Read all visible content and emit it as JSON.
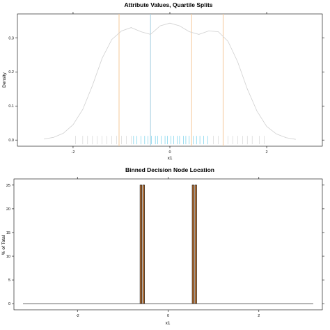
{
  "chart_data": [
    {
      "type": "line",
      "title": "Attribute Values, Quartile Splits",
      "xlabel": "x1",
      "ylabel": "Density",
      "xlim": [
        -3.15,
        3.15
      ],
      "ylim": [
        -0.018,
        0.37
      ],
      "x_ticks": [
        -2,
        0,
        2
      ],
      "x_tick_labels": [
        "-2",
        "0",
        "2"
      ],
      "y_ticks": [
        0.0,
        0.1,
        0.2,
        0.3
      ],
      "y_tick_labels": [
        "0.0",
        "0.1",
        "0.2",
        "0.3"
      ],
      "density": {
        "x": [
          -2.6,
          -2.4,
          -2.2,
          -2.0,
          -1.8,
          -1.6,
          -1.4,
          -1.2,
          -1.0,
          -0.8,
          -0.6,
          -0.4,
          -0.2,
          0.0,
          0.2,
          0.4,
          0.6,
          0.8,
          1.0,
          1.2,
          1.4,
          1.6,
          1.8,
          2.0,
          2.2,
          2.4,
          2.6
        ],
        "y": [
          0.003,
          0.008,
          0.02,
          0.045,
          0.09,
          0.16,
          0.24,
          0.295,
          0.32,
          0.33,
          0.318,
          0.31,
          0.335,
          0.343,
          0.335,
          0.318,
          0.31,
          0.32,
          0.318,
          0.29,
          0.23,
          0.15,
          0.085,
          0.04,
          0.018,
          0.007,
          0.002
        ],
        "color": "#d0d0d0"
      },
      "quartile_splits": {
        "orange_x": [
          -1.05,
          0.45,
          1.1
        ],
        "blue_x": [
          -0.4
        ],
        "orange_color": "#f5c89a",
        "blue_color": "#a6cfe0"
      },
      "rug": {
        "grey_x": [
          -1.95,
          -1.8,
          -1.7,
          -1.6,
          -1.5,
          -1.4,
          -1.3,
          -1.2,
          -1.1,
          -1.0,
          -0.9,
          -0.8,
          0.9,
          1.0,
          1.2,
          1.3,
          1.4,
          1.5,
          1.6,
          1.7,
          1.85,
          1.95
        ],
        "cyan_x": [
          -0.75,
          -0.68,
          -0.6,
          -0.52,
          -0.45,
          -0.38,
          -0.3,
          -0.25,
          -0.18,
          -0.1,
          -0.05,
          0.02,
          0.08,
          0.15,
          0.2,
          0.28,
          0.33,
          0.4,
          0.48,
          0.55,
          0.62,
          0.7,
          0.78
        ],
        "grey_color": "#cfcfcf",
        "cyan_color": "#5bc8e8"
      }
    },
    {
      "type": "bar",
      "title": "Binned Decision Node Location",
      "xlabel": "x1",
      "ylabel": "% of Total",
      "xlim": [
        -3.4,
        3.4
      ],
      "ylim": [
        -1.3,
        26.3
      ],
      "x_ticks": [
        -2,
        0,
        2
      ],
      "x_tick_labels": [
        "-2",
        "0",
        "2"
      ],
      "y_ticks": [
        0,
        5,
        10,
        15,
        20,
        25
      ],
      "y_tick_labels": [
        "0",
        "5",
        "10",
        "15",
        "20",
        "25"
      ],
      "bins": [
        {
          "left": -0.62,
          "right": -0.58,
          "value": 25
        },
        {
          "left": -0.56,
          "right": -0.52,
          "value": 25
        },
        {
          "left": 0.53,
          "right": 0.57,
          "value": 25
        },
        {
          "left": 0.59,
          "right": 0.63,
          "value": 25
        }
      ],
      "baseline_x": [
        -3.2,
        3.2
      ],
      "bar_fill": "#c97f3f",
      "bar_stroke": "#000000"
    }
  ]
}
